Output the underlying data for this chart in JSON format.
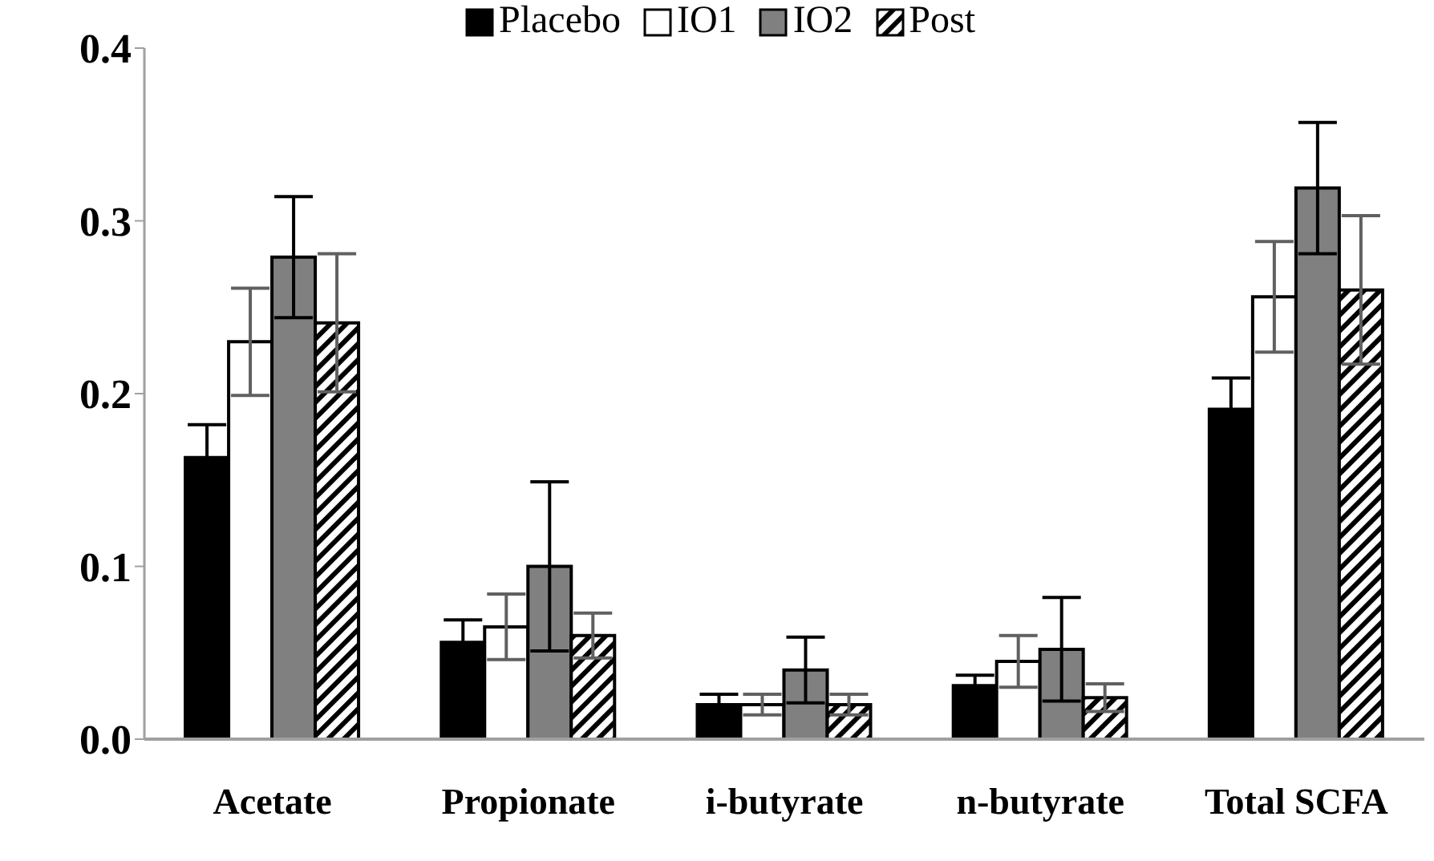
{
  "chart_data": {
    "type": "bar",
    "categories": [
      "Acetate",
      "Propionate",
      "i-butyrate",
      "n-butyrate",
      "Total SCFA"
    ],
    "series": [
      {
        "name": "Placebo",
        "color": "#000000",
        "values": [
          0.163,
          0.056,
          0.02,
          0.031,
          0.191
        ],
        "errors": [
          0.019,
          0.013,
          0.006,
          0.006,
          0.018
        ]
      },
      {
        "name": "IO1",
        "color": "#ffffff",
        "values": [
          0.23,
          0.065,
          0.02,
          0.045,
          0.256
        ],
        "errors": [
          0.031,
          0.019,
          0.006,
          0.015,
          0.032
        ]
      },
      {
        "name": "IO2",
        "color": "#808080",
        "values": [
          0.279,
          0.1,
          0.04,
          0.052,
          0.319
        ],
        "errors": [
          0.035,
          0.049,
          0.019,
          0.03,
          0.038
        ]
      },
      {
        "name": "Post",
        "color": "#000000",
        "values": [
          0.241,
          0.06,
          0.02,
          0.024,
          0.26
        ],
        "errors": [
          0.04,
          0.013,
          0.006,
          0.008,
          0.043
        ]
      }
    ],
    "ylim": [
      0,
      0.4
    ],
    "yticks": [
      {
        "value": 0,
        "label": "0.0"
      },
      {
        "value": 0.1,
        "label": "0.1"
      },
      {
        "value": 0.2,
        "label": "0.2"
      },
      {
        "value": 0.3,
        "label": "0.3"
      },
      {
        "value": 0.4,
        "label": "0.4"
      }
    ],
    "grid": false,
    "legend": "top"
  }
}
